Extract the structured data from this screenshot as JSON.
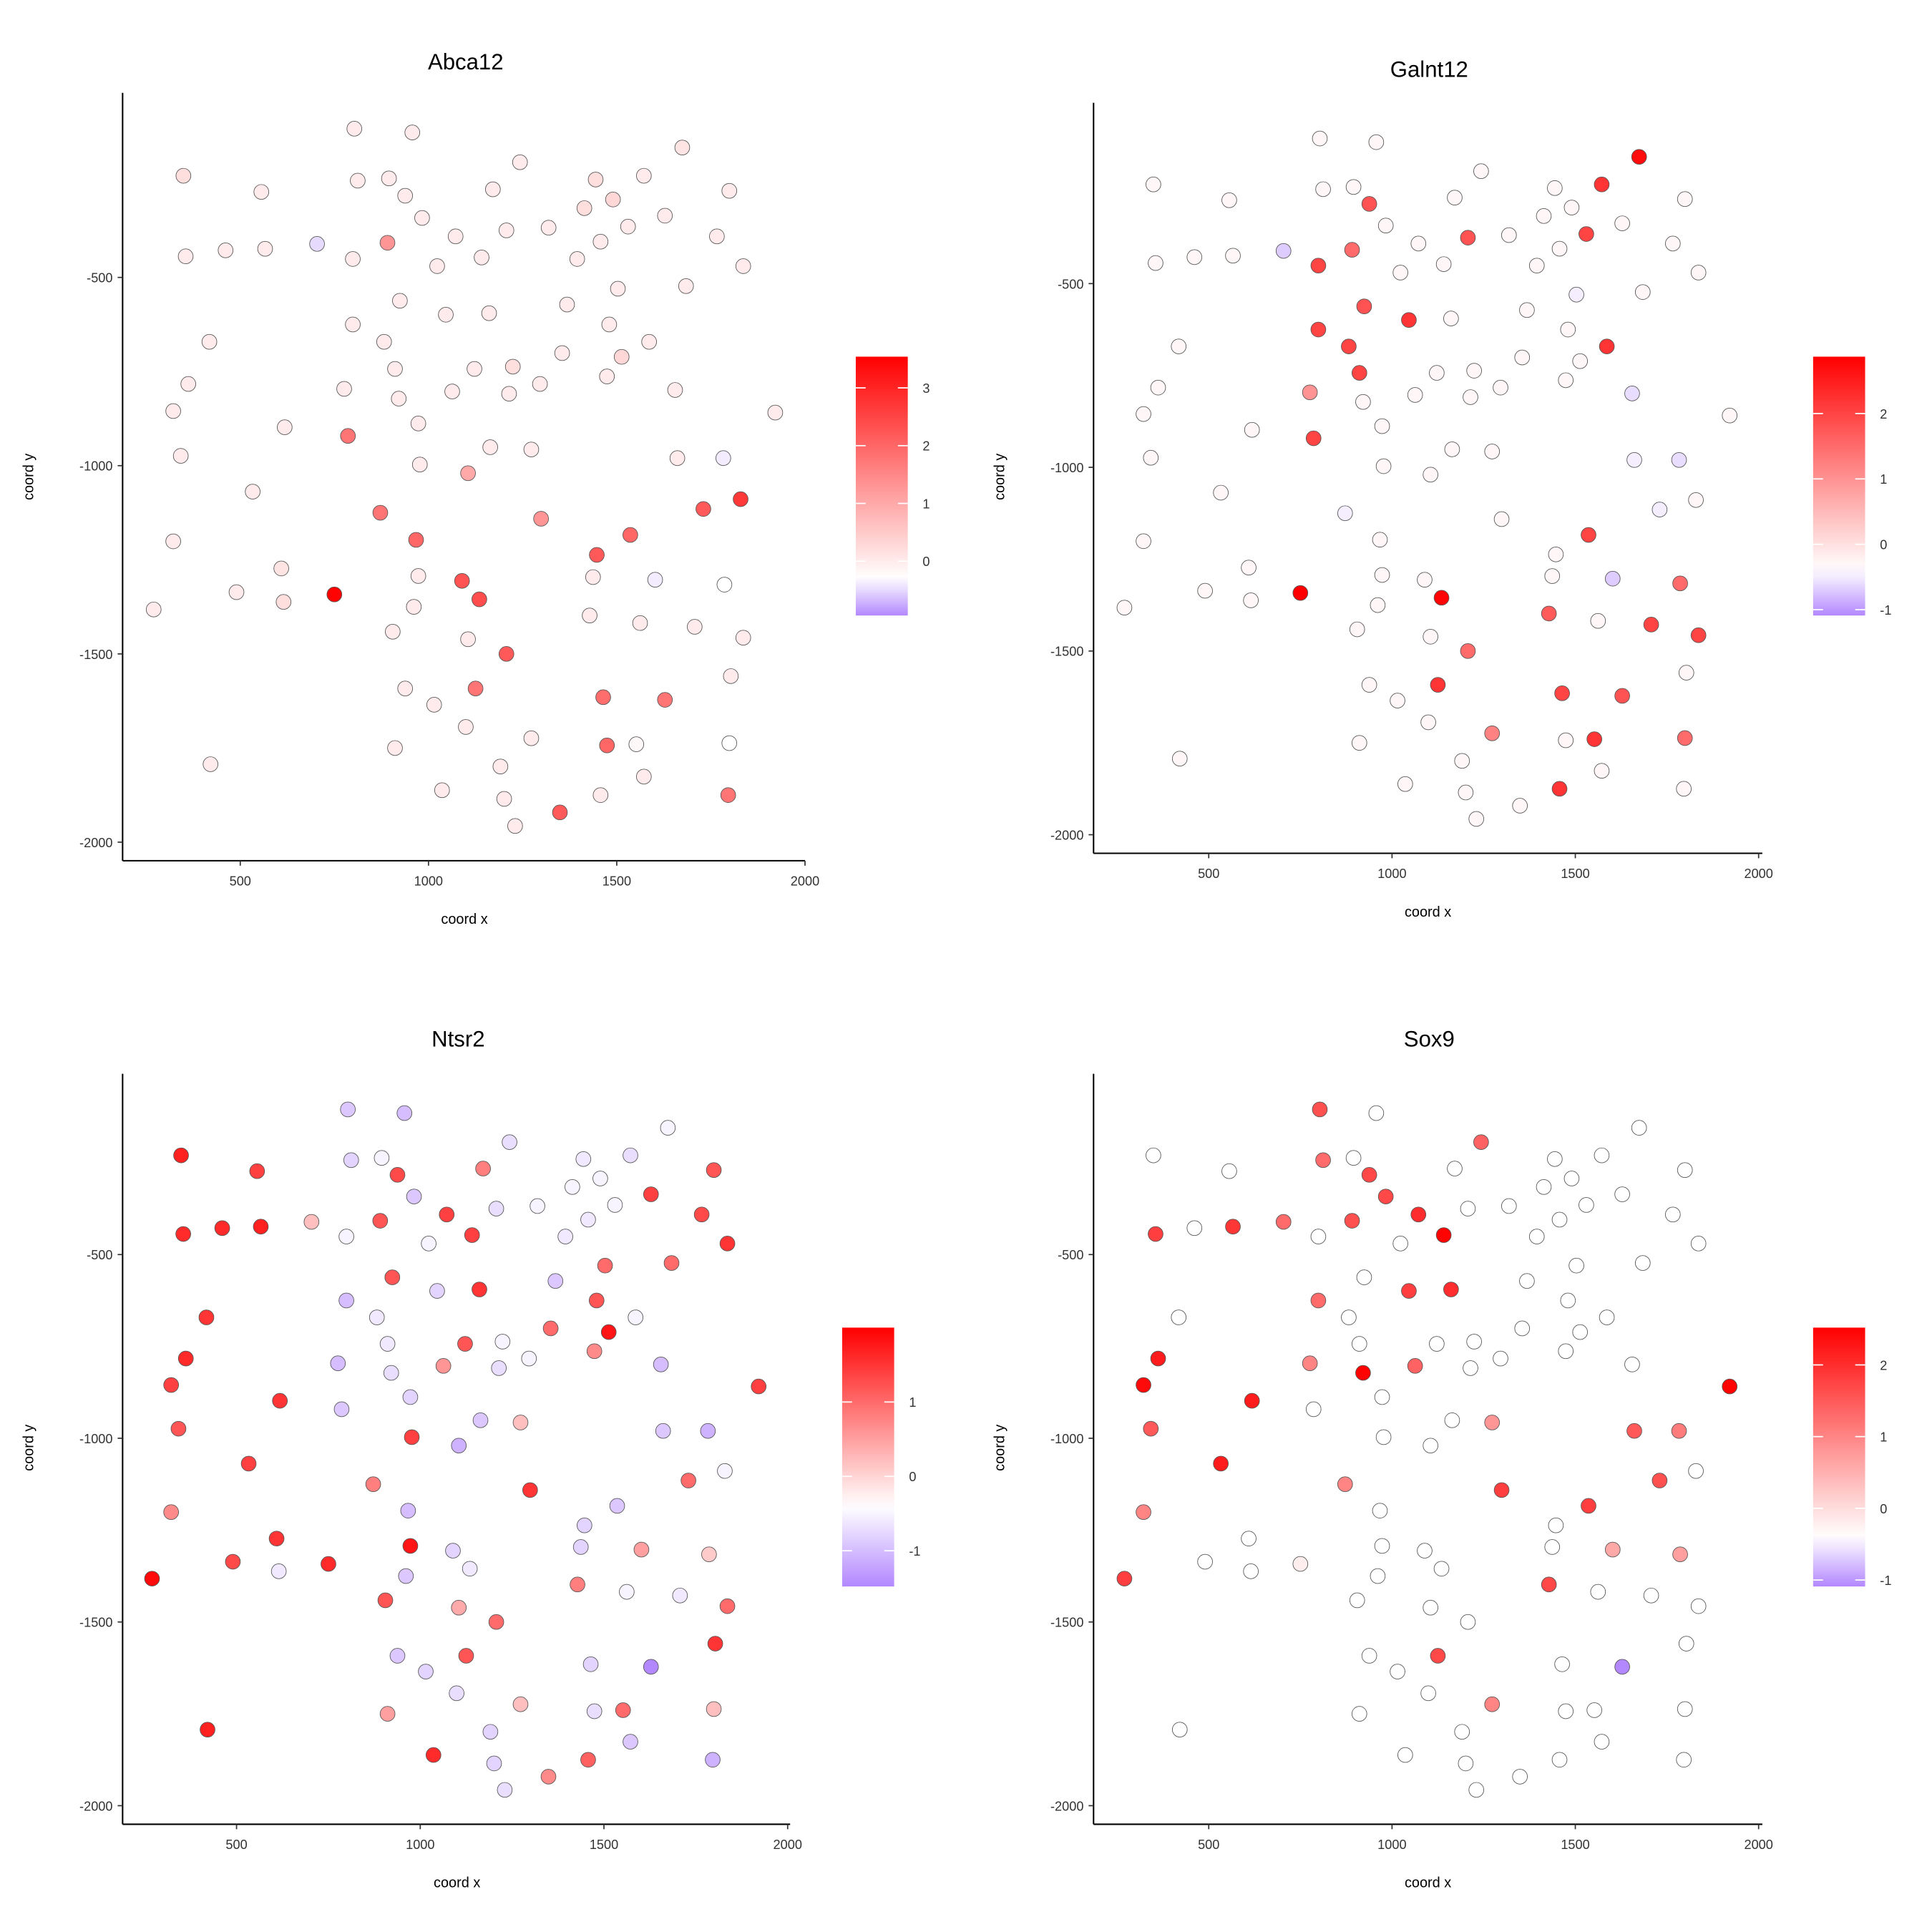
{
  "chart_data": {
    "type": "scatter",
    "xlabel": "coord x",
    "ylabel": "coord y",
    "x_ticks": [
      500,
      1000,
      1500,
      2000
    ],
    "y_ticks": [
      -500,
      -1000,
      -1500,
      -2000
    ],
    "low_color": "#b388ff",
    "mid_color": "#ffffff",
    "high_color": "#ff0000",
    "points": [
      [
        803,
        -105
      ],
      [
        957,
        -115
      ],
      [
        349,
        -230
      ],
      [
        556,
        -273
      ],
      [
        1243,
        -194
      ],
      [
        1674,
        -155
      ],
      [
        812,
        -243
      ],
      [
        895,
        -237
      ],
      [
        938,
        -283
      ],
      [
        1171,
        -266
      ],
      [
        1444,
        -240
      ],
      [
        1572,
        -230
      ],
      [
        1799,
        -270
      ],
      [
        1490,
        -293
      ],
      [
        1414,
        -316
      ],
      [
        983,
        -342
      ],
      [
        1319,
        -368
      ],
      [
        1530,
        -365
      ],
      [
        1628,
        -336
      ],
      [
        355,
        -444
      ],
      [
        461,
        -428
      ],
      [
        566,
        -424
      ],
      [
        704,
        -411
      ],
      [
        891,
        -408
      ],
      [
        799,
        -451
      ],
      [
        1072,
        -391
      ],
      [
        1207,
        -375
      ],
      [
        1141,
        -447
      ],
      [
        1023,
        -470
      ],
      [
        1395,
        -451
      ],
      [
        1457,
        -405
      ],
      [
        1766,
        -391
      ],
      [
        1836,
        -470
      ],
      [
        1503,
        -530
      ],
      [
        1684,
        -523
      ],
      [
        924,
        -562
      ],
      [
        1368,
        -572
      ],
      [
        1046,
        -599
      ],
      [
        1161,
        -595
      ],
      [
        799,
        -625
      ],
      [
        418,
        -671
      ],
      [
        882,
        -671
      ],
      [
        1480,
        -625
      ],
      [
        1586,
        -671
      ],
      [
        362,
        -783
      ],
      [
        911,
        -743
      ],
      [
        1122,
        -743
      ],
      [
        1224,
        -737
      ],
      [
        1355,
        -701
      ],
      [
        1513,
        -711
      ],
      [
        1474,
        -763
      ],
      [
        776,
        -796
      ],
      [
        921,
        -822
      ],
      [
        1063,
        -803
      ],
      [
        1214,
        -809
      ],
      [
        1296,
        -783
      ],
      [
        1655,
        -799
      ],
      [
        322,
        -855
      ],
      [
        1921,
        -859
      ],
      [
        618,
        -898
      ],
      [
        973,
        -888
      ],
      [
        786,
        -921
      ],
      [
        342,
        -974
      ],
      [
        977,
        -997
      ],
      [
        1164,
        -951
      ],
      [
        1273,
        -957
      ],
      [
        1105,
        -1020
      ],
      [
        1661,
        -980
      ],
      [
        1783,
        -980
      ],
      [
        533,
        -1069
      ],
      [
        1829,
        -1089
      ],
      [
        1730,
        -1115
      ],
      [
        872,
        -1125
      ],
      [
        1299,
        -1141
      ],
      [
        322,
        -1201
      ],
      [
        967,
        -1197
      ],
      [
        1536,
        -1184
      ],
      [
        1447,
        -1237
      ],
      [
        609,
        -1273
      ],
      [
        973,
        -1293
      ],
      [
        1089,
        -1306
      ],
      [
        1437,
        -1296
      ],
      [
        1602,
        -1303
      ],
      [
        1786,
        -1316
      ],
      [
        270,
        -1382
      ],
      [
        490,
        -1336
      ],
      [
        615,
        -1362
      ],
      [
        750,
        -1342
      ],
      [
        961,
        -1375
      ],
      [
        1135,
        -1355
      ],
      [
        1428,
        -1398
      ],
      [
        1562,
        -1418
      ],
      [
        1707,
        -1428
      ],
      [
        1836,
        -1457
      ],
      [
        905,
        -1441
      ],
      [
        1105,
        -1461
      ],
      [
        1207,
        -1500
      ],
      [
        938,
        -1592
      ],
      [
        1125,
        -1592
      ],
      [
        1464,
        -1615
      ],
      [
        1628,
        -1622
      ],
      [
        1803,
        -1559
      ],
      [
        1015,
        -1635
      ],
      [
        1099,
        -1694
      ],
      [
        1273,
        -1724
      ],
      [
        911,
        -1750
      ],
      [
        1474,
        -1743
      ],
      [
        1552,
        -1740
      ],
      [
        1799,
        -1737
      ],
      [
        421,
        -1793
      ],
      [
        1191,
        -1799
      ],
      [
        1572,
        -1826
      ],
      [
        1036,
        -1862
      ],
      [
        1201,
        -1885
      ],
      [
        1457,
        -1875
      ],
      [
        1349,
        -1921
      ],
      [
        1796,
        -1875
      ],
      [
        1230,
        -1957
      ]
    ],
    "panels": [
      {
        "title": "Abca12",
        "color_range": [
          -0.94,
          3.54
        ],
        "midpoint": -0.3,
        "colorbar_ticks": [
          0,
          1,
          2,
          3
        ],
        "values": [
          0,
          0,
          0.2,
          0,
          0,
          0.1,
          0,
          0,
          0,
          0,
          0.2,
          0,
          0,
          0.3,
          0.2,
          0,
          0,
          0,
          0,
          0,
          0,
          0,
          -0.5,
          1.3,
          0,
          0,
          0,
          0,
          0,
          0,
          0,
          0,
          0,
          0,
          0,
          0,
          0,
          0,
          0,
          0,
          0,
          0,
          0,
          0,
          0,
          0,
          0,
          0.2,
          0,
          0.3,
          0,
          0,
          0,
          0,
          0,
          0,
          0,
          0,
          0,
          0,
          0,
          1.8,
          0,
          0,
          0,
          0,
          1.0,
          0,
          -0.4,
          0,
          2.7,
          2.2,
          1.8,
          1.3,
          0,
          2.0,
          2.0,
          2.2,
          0.1,
          0,
          2.3,
          0,
          -0.4,
          -0.3,
          0,
          0,
          0.2,
          3.5,
          0,
          2.4,
          0,
          0,
          0,
          0,
          0,
          0,
          2.2,
          0,
          1.8,
          1.9,
          1.8,
          0,
          0,
          0,
          0,
          0,
          2.0,
          -0.2,
          -0.3,
          0,
          0,
          0,
          0,
          0,
          0,
          2.2,
          1.8,
          0
        ]
      },
      {
        "title": "Galnt12",
        "color_range": [
          -1.09,
          2.87
        ],
        "midpoint": -0.4,
        "colorbar_ticks": [
          -1,
          0,
          1,
          2
        ],
        "values": [
          -0.3,
          -0.3,
          -0.3,
          -0.3,
          -0.3,
          2.7,
          -0.3,
          -0.3,
          1.8,
          -0.3,
          -0.3,
          2.2,
          -0.3,
          -0.3,
          -0.3,
          -0.3,
          -0.3,
          2.0,
          -0.3,
          -0.3,
          -0.3,
          -0.3,
          -0.7,
          1.5,
          2.0,
          -0.3,
          1.8,
          -0.3,
          -0.3,
          -0.3,
          -0.3,
          -0.3,
          -0.3,
          -0.5,
          -0.3,
          1.8,
          -0.3,
          2.2,
          -0.3,
          2.0,
          -0.3,
          2.0,
          -0.3,
          2.2,
          -0.3,
          2.0,
          -0.3,
          -0.3,
          -0.3,
          -0.3,
          -0.3,
          1.0,
          -0.3,
          -0.3,
          -0.3,
          -0.3,
          -0.6,
          -0.3,
          -0.3,
          -0.3,
          -0.3,
          2.0,
          -0.3,
          -0.3,
          -0.3,
          -0.3,
          -0.3,
          -0.5,
          -0.6,
          -0.3,
          -0.3,
          -0.5,
          -0.5,
          -0.3,
          -0.3,
          -0.3,
          2.0,
          -0.3,
          -0.3,
          -0.3,
          -0.3,
          -0.3,
          -0.7,
          1.5,
          -0.3,
          -0.3,
          -0.3,
          2.9,
          -0.3,
          2.8,
          1.7,
          -0.3,
          2.0,
          2.0,
          -0.3,
          -0.3,
          1.5,
          -0.3,
          2.2,
          2.0,
          1.8,
          -0.3,
          -0.3,
          -0.3,
          1.2,
          -0.3,
          -0.3,
          2.2,
          1.5,
          -0.3,
          -0.3,
          -0.3,
          -0.3,
          -0.3,
          2.2,
          -0.3,
          -0.3,
          -0.3
        ]
      },
      {
        "title": "Ntsr2",
        "color_range": [
          -1.48,
          2.0
        ],
        "midpoint": -0.4,
        "colorbar_ticks": [
          -1,
          0,
          1
        ],
        "values": [
          -0.9,
          -1.0,
          1.7,
          1.4,
          -0.7,
          -0.5,
          -0.8,
          -0.5,
          1.3,
          0.8,
          -0.6,
          -0.7,
          1.2,
          -0.5,
          -0.5,
          -0.9,
          -0.5,
          -0.5,
          1.4,
          1.6,
          1.6,
          1.7,
          0.2,
          1.2,
          -0.5,
          1.4,
          -0.7,
          1.4,
          -0.5,
          -0.6,
          -0.6,
          1.3,
          1.5,
          1.0,
          1.0,
          1.2,
          -0.9,
          -0.8,
          1.5,
          -1.0,
          1.5,
          -0.6,
          1.2,
          -0.5,
          1.6,
          -0.6,
          1.2,
          -0.5,
          1.0,
          1.8,
          0.7,
          -1.0,
          -0.7,
          0.6,
          -0.7,
          -0.5,
          -1.0,
          1.4,
          1.4,
          1.5,
          -0.8,
          -0.9,
          1.2,
          1.4,
          -0.9,
          0.2,
          -1.1,
          -0.9,
          -1.1,
          1.4,
          -0.5,
          1.0,
          0.8,
          1.5,
          0.7,
          -1.0,
          -0.9,
          -0.8,
          1.5,
          1.8,
          -0.8,
          -0.8,
          0.5,
          0.1,
          1.9,
          1.3,
          -0.6,
          1.6,
          -0.9,
          -0.6,
          0.8,
          -0.5,
          -0.6,
          1.0,
          1.2,
          0.4,
          1.0,
          -0.9,
          1.2,
          -0.8,
          -1.5,
          1.5,
          -0.8,
          -0.7,
          0.2,
          0.5,
          -0.7,
          1.0,
          0.2,
          1.7,
          -0.8,
          -0.9,
          1.6,
          -0.8,
          1.1,
          0.7,
          -1.1,
          -0.7
        ]
      },
      {
        "title": "Sox9",
        "color_range": [
          -1.09,
          2.52
        ],
        "midpoint": -0.4,
        "colorbar_ticks": [
          -1,
          0,
          1,
          2
        ],
        "values": [
          1.6,
          -0.4,
          -0.4,
          -0.4,
          1.4,
          -0.4,
          1.3,
          -0.4,
          1.7,
          -0.4,
          -0.4,
          -0.4,
          -0.4,
          -0.4,
          -0.4,
          1.7,
          -0.4,
          -0.4,
          -0.4,
          1.8,
          -0.4,
          1.9,
          1.3,
          1.6,
          -0.4,
          2.0,
          -0.4,
          2.5,
          -0.4,
          -0.4,
          -0.4,
          -0.4,
          -0.4,
          -0.4,
          -0.4,
          -0.4,
          -0.4,
          1.8,
          2.0,
          1.3,
          -0.4,
          -0.4,
          -0.4,
          -0.4,
          2.2,
          -0.4,
          -0.4,
          -0.4,
          -0.4,
          -0.4,
          -0.4,
          1.0,
          2.5,
          1.4,
          -0.4,
          -0.4,
          -0.4,
          2.4,
          2.5,
          2.2,
          -0.4,
          -0.4,
          1.5,
          -0.4,
          -0.4,
          0.8,
          -0.4,
          1.5,
          1.1,
          2.2,
          -0.4,
          1.6,
          1.0,
          1.8,
          1.0,
          -0.4,
          1.8,
          -0.4,
          -0.4,
          -0.4,
          -0.4,
          -0.4,
          0.6,
          0.7,
          1.8,
          -0.4,
          -0.4,
          -0.2,
          -0.4,
          -0.4,
          1.7,
          -0.4,
          -0.4,
          -0.4,
          -0.4,
          -0.4,
          -0.4,
          -0.4,
          1.7,
          -0.4,
          -1.1,
          -0.4,
          -0.4,
          -0.4,
          1.0,
          -0.4,
          -0.4,
          -0.4,
          -0.4,
          -0.4,
          -0.4,
          -0.4,
          -0.4,
          -0.4,
          -0.4,
          -0.4,
          -0.4,
          -0.4
        ]
      }
    ]
  }
}
